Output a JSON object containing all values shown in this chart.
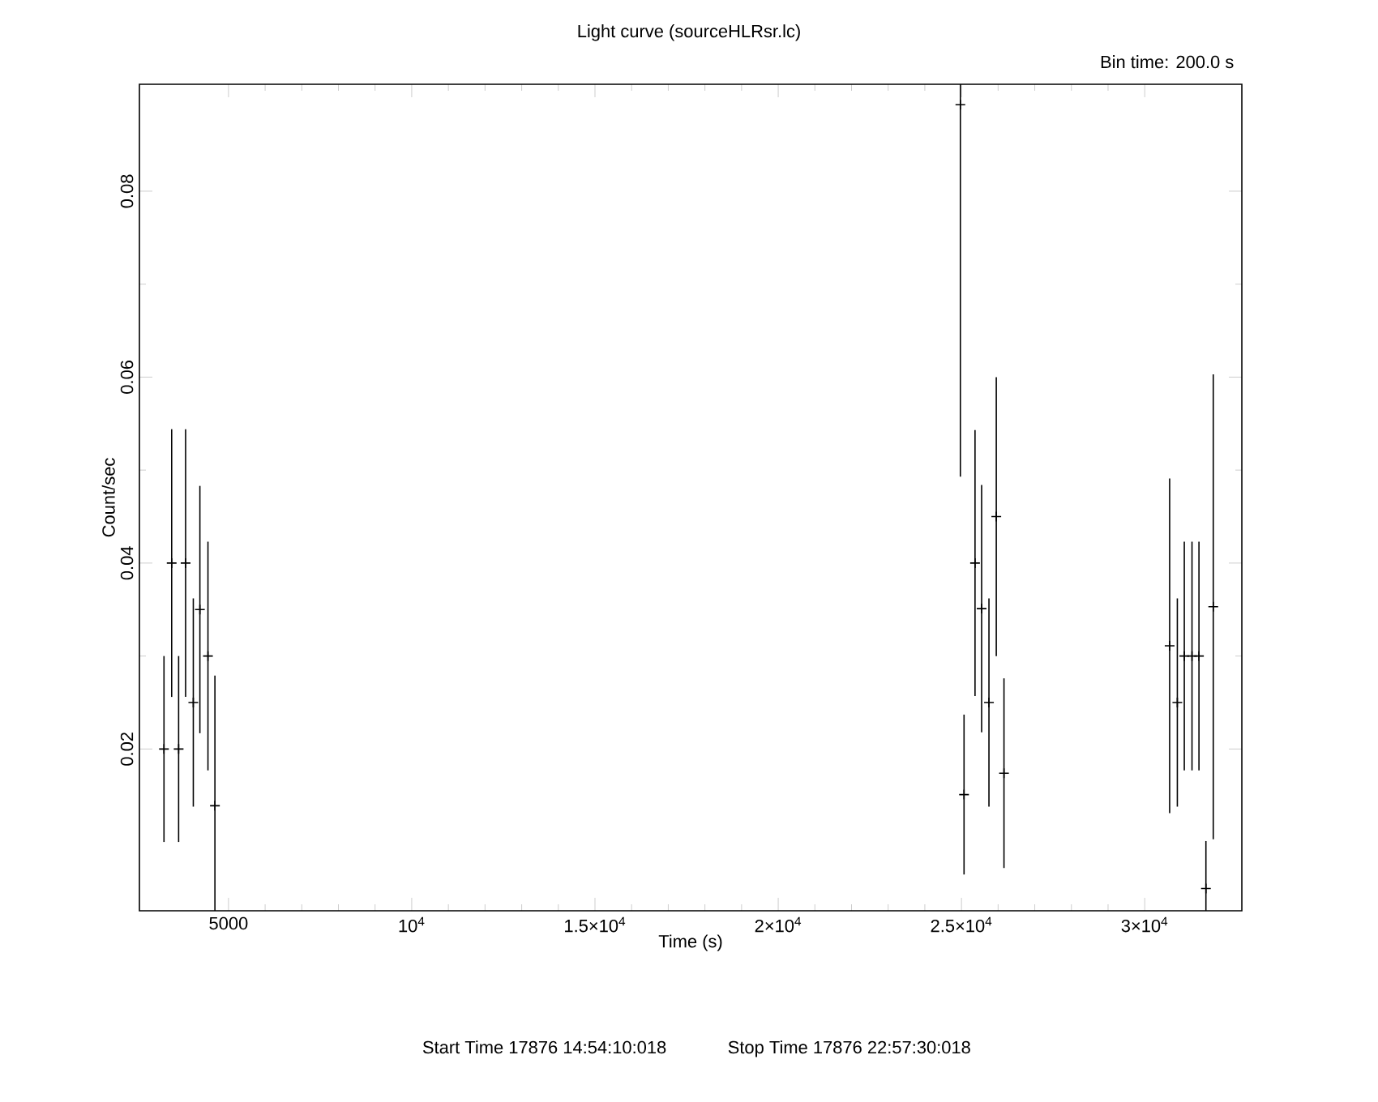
{
  "chart_data": {
    "type": "scatter",
    "title": "Light curve (sourceHLRsr.lc)",
    "xlabel": "Time (s)",
    "ylabel": "Count/sec",
    "annotations": [
      "Bin time:    200.0     s",
      "Start Time 17876 14:54:10:018",
      "Stop Time 17876 22:57:30:018"
    ],
    "series": [
      {
        "x": [
          3240,
          3450,
          3640,
          3830,
          4040,
          4220,
          4440,
          4630,
          24970,
          25070,
          25370,
          25550,
          25750,
          25950,
          26160,
          30680,
          30890,
          31080,
          31290,
          31480,
          31670,
          31870
        ],
        "values": [
          0.02,
          0.04,
          0.02,
          0.04,
          0.025,
          0.035,
          0.03,
          0.0139,
          0.0893,
          0.0151,
          0.04,
          0.0351,
          0.025,
          0.045,
          0.0174,
          0.0311,
          0.025,
          0.03,
          0.03,
          0.03,
          0.005,
          0.0353
        ],
        "errors": [
          0.01,
          0.0144,
          0.01,
          0.0144,
          0.0112,
          0.0133,
          0.0123,
          [
            0.0026,
            0.0279
          ],
          [
            0.0493,
            0.0915
          ],
          0.0086,
          0.0143,
          0.0133,
          0.0112,
          0.015,
          0.0102,
          0.018,
          0.0112,
          0.0123,
          0.0123,
          0.0123,
          [
            0.0026,
            0.0101
          ],
          0.025
        ],
        "color": "#000000"
      }
    ],
    "xlim": [
      2570,
      32650
    ],
    "ylim": [
      0.0026,
      0.0915
    ],
    "xticks": [
      5000,
      {
        "value": 10000,
        "label": "10$^{4}$"
      },
      {
        "value": 15000,
        "label": "1.5×10$^{4}$"
      },
      {
        "value": 20000,
        "label": "2×10$^{4}$"
      },
      {
        "value": 25000,
        "label": "2.5×10$^{4}$"
      },
      {
        "value": 30000,
        "label": "3×10$^{4}$"
      }
    ],
    "yticks": [
      0.02,
      0.04,
      0.06,
      0.08
    ],
    "marker": "cross",
    "grid": false
  }
}
